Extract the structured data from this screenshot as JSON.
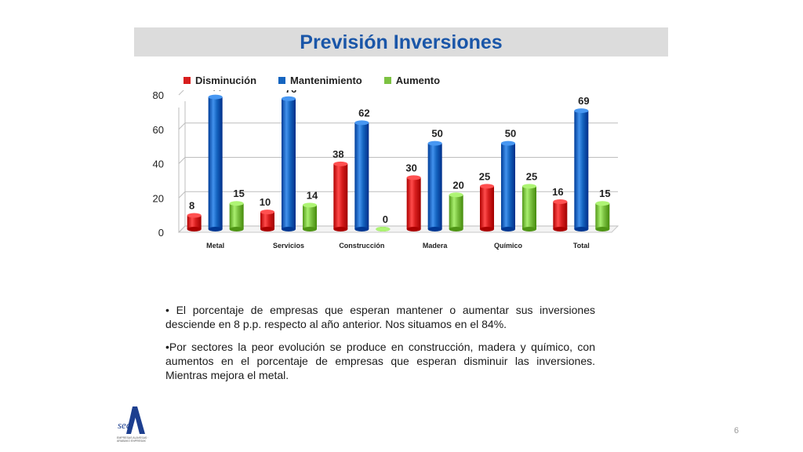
{
  "slide": {
    "title": "Previsión Inversiones",
    "page_number": "6"
  },
  "bullets": [
    "• El porcentaje de empresas que esperan mantener o aumentar sus inversiones desciende en 8 p.p. respecto al año anterior. Nos situamos en el 84%.",
    "•Por sectores la peor evolución se produce en construcción, madera y químico, con aumentos en el porcentaje de empresas que esperan disminuir las inversiones. Mientras mejora el metal."
  ],
  "logo": {
    "mark": "sea",
    "subtitle": "EMPRESAS ALAVESAS · ARABAKO ENPRESAK"
  },
  "chart_data": {
    "type": "bar",
    "categories": [
      "Metal",
      "Servicios",
      "Construcción",
      "Madera",
      "Químico",
      "Total"
    ],
    "series": [
      {
        "name": "Disminución",
        "color": "#d81e1e",
        "values": [
          8,
          10,
          38,
          30,
          25,
          16
        ]
      },
      {
        "name": "Mantenimiento",
        "color": "#1565c0",
        "values": [
          77,
          76,
          62,
          50,
          50,
          69
        ]
      },
      {
        "name": "Aumento",
        "color": "#7cc242",
        "values": [
          15,
          14,
          0,
          20,
          25,
          15
        ]
      }
    ],
    "yticks": [
      0,
      20,
      40,
      60,
      80
    ],
    "ylim": [
      0,
      80
    ],
    "legend_position": "top-left",
    "grid": true
  }
}
